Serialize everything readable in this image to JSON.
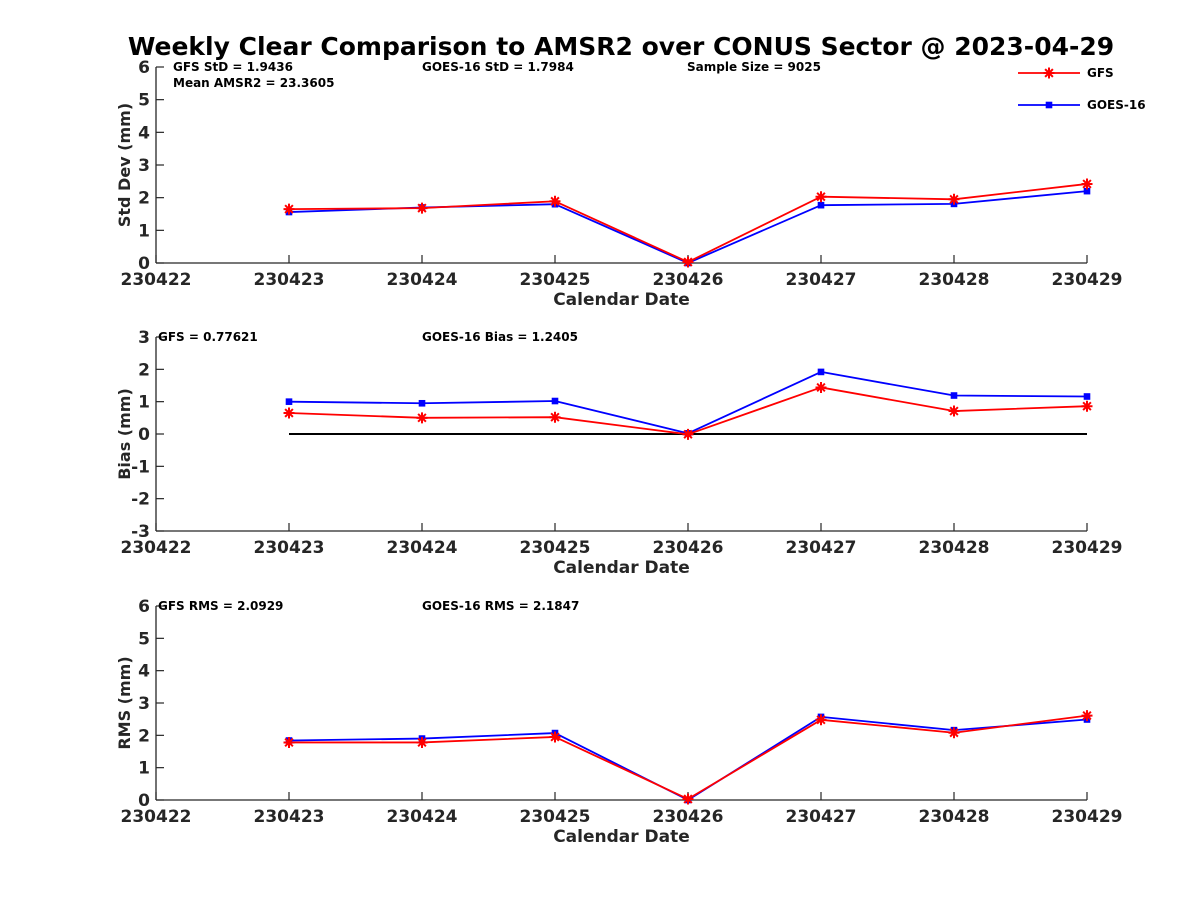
{
  "title": "Weekly Clear Comparison to AMSR2 over CONUS Sector @ 2023-04-29",
  "colors": {
    "GFS": "#ff0000",
    "GOES-16": "#0000ff",
    "zero_line": "#000000",
    "axis": "#262626"
  },
  "legend": {
    "placement": "top-right",
    "entries": [
      "GFS",
      "GOES-16"
    ]
  },
  "chart_data": [
    {
      "type": "line",
      "x": [
        "230422",
        "230423",
        "230424",
        "230425",
        "230426",
        "230427",
        "230428",
        "230429"
      ],
      "xlabel": "Calendar Date",
      "ylabel": "Std Dev (mm)",
      "ylim": [
        0,
        6
      ],
      "yticks": [
        "0",
        "1",
        "2",
        "3",
        "4",
        "5",
        "6"
      ],
      "grid": false,
      "zero_line": false,
      "annotations": [
        "GFS StD = 1.9436",
        "GOES-16 StD = 1.7984",
        "Sample Size = 9025",
        "Mean AMSR2 = 23.3605"
      ],
      "series": [
        {
          "name": "GFS",
          "marker": "star",
          "x": [
            "230423",
            "230424",
            "230425",
            "230426",
            "230427",
            "230428",
            "230429"
          ],
          "values": [
            1.65,
            1.68,
            1.89,
            0.03,
            2.03,
            1.95,
            2.42
          ]
        },
        {
          "name": "GOES-16",
          "marker": "square",
          "x": [
            "230423",
            "230424",
            "230425",
            "230426",
            "230427",
            "230428",
            "230429"
          ],
          "values": [
            1.56,
            1.7,
            1.8,
            0.0,
            1.77,
            1.81,
            2.2
          ]
        }
      ]
    },
    {
      "type": "line",
      "x": [
        "230422",
        "230423",
        "230424",
        "230425",
        "230426",
        "230427",
        "230428",
        "230429"
      ],
      "xlabel": "Calendar Date",
      "ylabel": "Bias (mm)",
      "ylim": [
        -3,
        3
      ],
      "yticks": [
        "-3",
        "-2",
        "-1",
        "0",
        "1",
        "2",
        "3"
      ],
      "grid": false,
      "zero_line": true,
      "annotations": [
        "GFS = 0.77621",
        "GOES-16 Bias  = 1.2405"
      ],
      "series": [
        {
          "name": "GFS",
          "marker": "star",
          "x": [
            "230423",
            "230424",
            "230425",
            "230426",
            "230427",
            "230428",
            "230429"
          ],
          "values": [
            0.65,
            0.5,
            0.52,
            -0.01,
            1.44,
            0.71,
            0.86
          ]
        },
        {
          "name": "GOES-16",
          "marker": "square",
          "x": [
            "230423",
            "230424",
            "230425",
            "230426",
            "230427",
            "230428",
            "230429"
          ],
          "values": [
            1.0,
            0.95,
            1.02,
            0.02,
            1.92,
            1.19,
            1.16
          ]
        }
      ]
    },
    {
      "type": "line",
      "x": [
        "230422",
        "230423",
        "230424",
        "230425",
        "230426",
        "230427",
        "230428",
        "230429"
      ],
      "xlabel": "Calendar Date",
      "ylabel": "RMS (mm)",
      "ylim": [
        0,
        6
      ],
      "yticks": [
        "0",
        "1",
        "2",
        "3",
        "4",
        "5",
        "6"
      ],
      "grid": false,
      "zero_line": false,
      "annotations": [
        "GFS RMS = 2.0929",
        "GOES-16 RMS = 2.1847"
      ],
      "series": [
        {
          "name": "GFS",
          "marker": "star",
          "x": [
            "230423",
            "230424",
            "230425",
            "230426",
            "230427",
            "230428",
            "230429"
          ],
          "values": [
            1.78,
            1.78,
            1.95,
            0.03,
            2.48,
            2.08,
            2.61
          ]
        },
        {
          "name": "GOES-16",
          "marker": "square",
          "x": [
            "230423",
            "230424",
            "230425",
            "230426",
            "230427",
            "230428",
            "230429"
          ],
          "values": [
            1.84,
            1.9,
            2.07,
            0.0,
            2.57,
            2.16,
            2.49
          ]
        }
      ]
    }
  ]
}
